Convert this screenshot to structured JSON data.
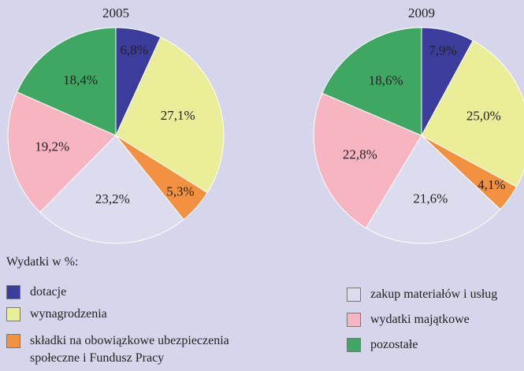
{
  "chart_data": [
    {
      "type": "pie",
      "title": "2005",
      "categories": [
        "dotacje",
        "wynagrodzenia",
        "składki na obowiązkowe ubezpieczenia społeczne i Fundusz Pracy",
        "zakup materiałów i usług",
        "wydatki majątkowe",
        "pozostałe"
      ],
      "colors": [
        "#3c3c9c",
        "#eaee98",
        "#f2913f",
        "#dcdcef",
        "#f7b4c1",
        "#3ea862"
      ],
      "values": [
        6.8,
        27.1,
        5.3,
        23.2,
        19.2,
        18.4
      ],
      "value_labels": [
        "6,8%",
        "27,1%",
        "5,3%",
        "23,2%",
        "19,2%",
        "18,4%"
      ]
    },
    {
      "type": "pie",
      "title": "2009",
      "values": [
        7.9,
        25.0,
        4.1,
        21.6,
        22.8,
        18.6
      ],
      "value_labels": [
        "7,9%",
        "25,0%",
        "4,1%",
        "21,6%",
        "22,8%",
        "18,6%"
      ]
    }
  ],
  "legend_title": "Wydatki w %:"
}
